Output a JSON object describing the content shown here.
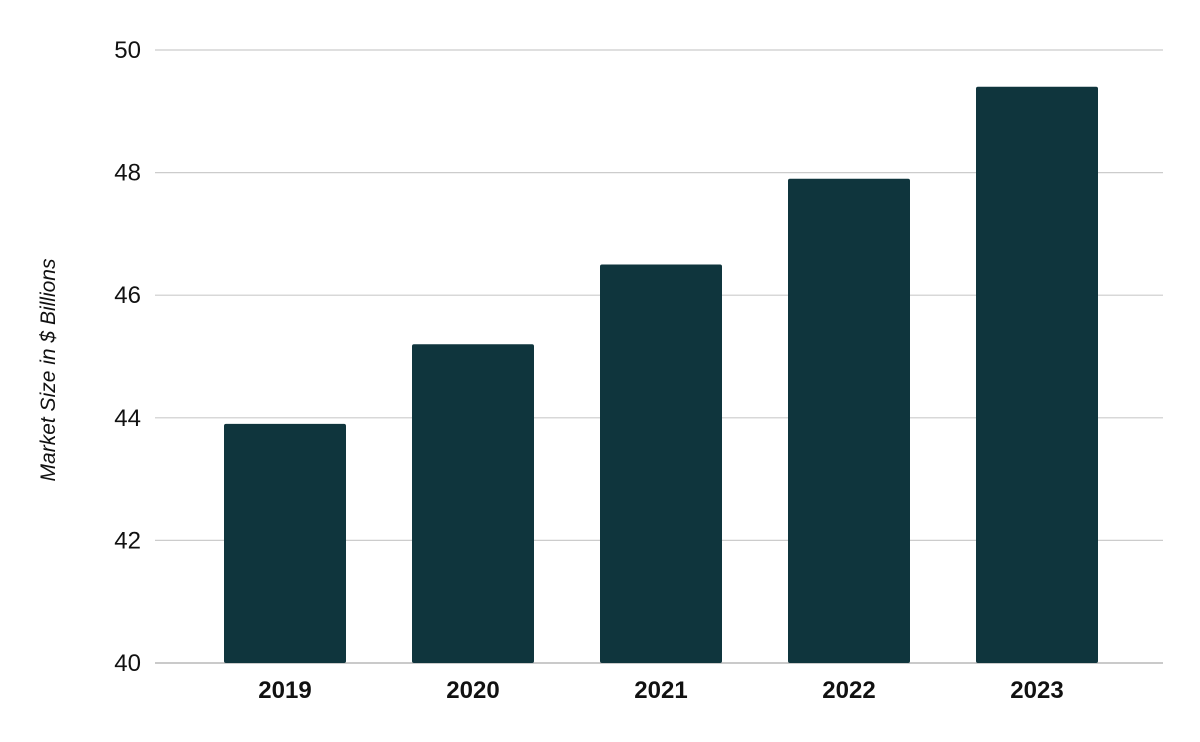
{
  "chart_data": {
    "type": "bar",
    "title": "",
    "xlabel": "",
    "ylabel": "Market Size in $ Billions",
    "categories": [
      "2019",
      "2020",
      "2021",
      "2022",
      "2023"
    ],
    "values": [
      43.9,
      45.2,
      46.5,
      47.9,
      49.4
    ],
    "ylim": [
      40,
      50
    ],
    "yticks": [
      "40",
      "42",
      "44",
      "46",
      "48",
      "50"
    ],
    "grid": true,
    "legend": "none",
    "bar_color": "#0f353d"
  }
}
